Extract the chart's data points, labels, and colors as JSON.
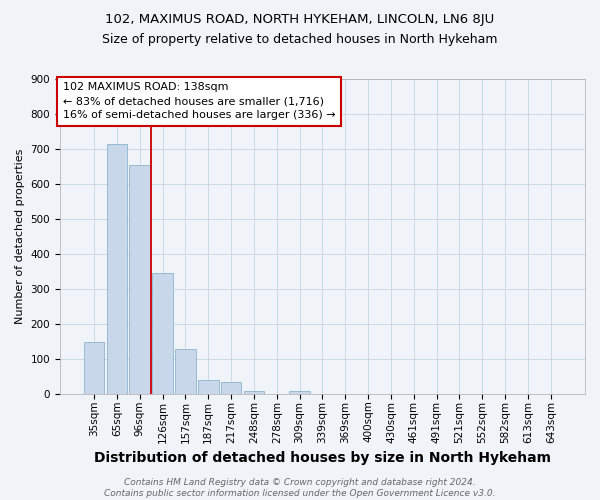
{
  "title1": "102, MAXIMUS ROAD, NORTH HYKEHAM, LINCOLN, LN6 8JU",
  "title2": "Size of property relative to detached houses in North Hykeham",
  "xlabel": "Distribution of detached houses by size in North Hykeham",
  "ylabel": "Number of detached properties",
  "footer1": "Contains HM Land Registry data © Crown copyright and database right 2024.",
  "footer2": "Contains public sector information licensed under the Open Government Licence v3.0.",
  "bar_labels": [
    "35sqm",
    "65sqm",
    "96sqm",
    "126sqm",
    "157sqm",
    "187sqm",
    "217sqm",
    "248sqm",
    "278sqm",
    "309sqm",
    "339sqm",
    "369sqm",
    "400sqm",
    "430sqm",
    "461sqm",
    "491sqm",
    "521sqm",
    "552sqm",
    "582sqm",
    "613sqm",
    "643sqm"
  ],
  "bar_values": [
    150,
    715,
    655,
    345,
    128,
    42,
    35,
    10,
    0,
    8,
    0,
    0,
    0,
    0,
    0,
    0,
    0,
    0,
    0,
    0,
    0
  ],
  "bar_color": "#c8d8ea",
  "bar_edge_color": "#8ab4cf",
  "red_line_x": 2.5,
  "annotation_text": "102 MAXIMUS ROAD: 138sqm\n← 83% of detached houses are smaller (1,716)\n16% of semi-detached houses are larger (336) →",
  "ylim": [
    0,
    900
  ],
  "yticks": [
    0,
    100,
    200,
    300,
    400,
    500,
    600,
    700,
    800,
    900
  ],
  "grid_color": "#c5d5e5",
  "title1_fontsize": 9.5,
  "title2_fontsize": 9,
  "xlabel_fontsize": 10,
  "ylabel_fontsize": 8,
  "tick_fontsize": 7.5,
  "footer_fontsize": 6.5,
  "annotation_fontsize": 8,
  "red_line_color": "#cc0000",
  "annotation_box_color": "#ffffff",
  "annotation_box_edge": "#cc0000",
  "fig_bg_color": "#f0f4f8"
}
